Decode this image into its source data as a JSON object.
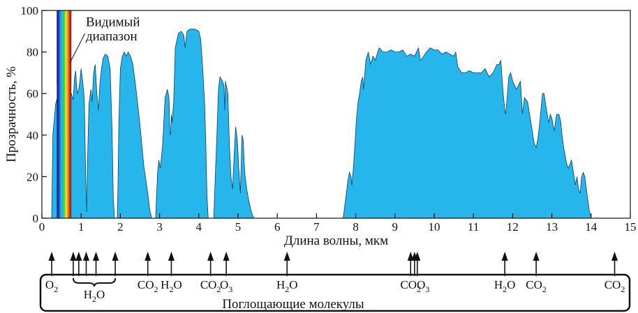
{
  "chart_data": {
    "type": "area",
    "title": "",
    "xlabel": "Длина волны, мкм",
    "ylabel": "Прозрачность, %",
    "xlim": [
      0,
      15
    ],
    "ylim": [
      0,
      100
    ],
    "x_ticks": [
      0,
      1,
      2,
      3,
      4,
      5,
      6,
      7,
      8,
      9,
      10,
      11,
      12,
      13,
      14,
      15
    ],
    "y_ticks": [
      0,
      20,
      40,
      60,
      80,
      100
    ],
    "grid": false,
    "fill_color": "#27b6ec",
    "series": [
      {
        "values_xy": [
          [
            0.25,
            0
          ],
          [
            0.28,
            40
          ],
          [
            0.35,
            55
          ],
          [
            0.45,
            62
          ],
          [
            0.55,
            64
          ],
          [
            0.65,
            63
          ],
          [
            0.75,
            60
          ],
          [
            0.8,
            57
          ],
          [
            0.83,
            67
          ],
          [
            0.86,
            71
          ],
          [
            0.9,
            60
          ],
          [
            0.94,
            62
          ],
          [
            0.97,
            66
          ],
          [
            1.0,
            72
          ],
          [
            1.04,
            66
          ],
          [
            1.08,
            58
          ],
          [
            1.1,
            38
          ],
          [
            1.12,
            18
          ],
          [
            1.14,
            3
          ],
          [
            1.16,
            25
          ],
          [
            1.2,
            55
          ],
          [
            1.25,
            62
          ],
          [
            1.28,
            56
          ],
          [
            1.32,
            70
          ],
          [
            1.36,
            74
          ],
          [
            1.4,
            60
          ],
          [
            1.44,
            52
          ],
          [
            1.48,
            65
          ],
          [
            1.52,
            72
          ],
          [
            1.56,
            77
          ],
          [
            1.62,
            79
          ],
          [
            1.68,
            78
          ],
          [
            1.74,
            72
          ],
          [
            1.79,
            42
          ],
          [
            1.82,
            10
          ],
          [
            1.85,
            0
          ],
          [
            1.92,
            0
          ],
          [
            1.94,
            15
          ],
          [
            1.96,
            45
          ],
          [
            2.0,
            72
          ],
          [
            2.05,
            78
          ],
          [
            2.1,
            80
          ],
          [
            2.15,
            78
          ],
          [
            2.2,
            80
          ],
          [
            2.26,
            78
          ],
          [
            2.32,
            74
          ],
          [
            2.4,
            62
          ],
          [
            2.5,
            45
          ],
          [
            2.6,
            25
          ],
          [
            2.7,
            12
          ],
          [
            2.75,
            4
          ],
          [
            2.8,
            0
          ],
          [
            2.9,
            0
          ],
          [
            2.92,
            10
          ],
          [
            2.95,
            22
          ],
          [
            2.98,
            28
          ],
          [
            3.02,
            24
          ],
          [
            3.08,
            36
          ],
          [
            3.14,
            58
          ],
          [
            3.2,
            62
          ],
          [
            3.24,
            58
          ],
          [
            3.26,
            42
          ],
          [
            3.28,
            40
          ],
          [
            3.3,
            50
          ],
          [
            3.32,
            46
          ],
          [
            3.36,
            56
          ],
          [
            3.4,
            82
          ],
          [
            3.48,
            89
          ],
          [
            3.55,
            90
          ],
          [
            3.62,
            88
          ],
          [
            3.65,
            82
          ],
          [
            3.7,
            90
          ],
          [
            3.78,
            91
          ],
          [
            3.9,
            91
          ],
          [
            4.0,
            90
          ],
          [
            4.05,
            86
          ],
          [
            4.1,
            72
          ],
          [
            4.15,
            55
          ],
          [
            4.18,
            35
          ],
          [
            4.21,
            10
          ],
          [
            4.24,
            0
          ],
          [
            4.38,
            0
          ],
          [
            4.42,
            20
          ],
          [
            4.46,
            40
          ],
          [
            4.5,
            62
          ],
          [
            4.54,
            68
          ],
          [
            4.6,
            66
          ],
          [
            4.64,
            64
          ],
          [
            4.66,
            52
          ],
          [
            4.68,
            66
          ],
          [
            4.74,
            60
          ],
          [
            4.78,
            36
          ],
          [
            4.82,
            20
          ],
          [
            4.86,
            14
          ],
          [
            4.9,
            30
          ],
          [
            4.94,
            44
          ],
          [
            4.98,
            38
          ],
          [
            5.02,
            24
          ],
          [
            5.06,
            12
          ],
          [
            5.1,
            40
          ],
          [
            5.13,
            38
          ],
          [
            5.17,
            22
          ],
          [
            5.22,
            14
          ],
          [
            5.28,
            8
          ],
          [
            5.34,
            3
          ],
          [
            5.4,
            0
          ],
          [
            7.68,
            0
          ],
          [
            7.72,
            6
          ],
          [
            7.8,
            18
          ],
          [
            7.84,
            22
          ],
          [
            7.88,
            20
          ],
          [
            7.9,
            16
          ],
          [
            7.94,
            24
          ],
          [
            7.98,
            36
          ],
          [
            8.02,
            48
          ],
          [
            8.06,
            56
          ],
          [
            8.1,
            60
          ],
          [
            8.14,
            66
          ],
          [
            8.18,
            68
          ],
          [
            8.2,
            62
          ],
          [
            8.26,
            76
          ],
          [
            8.32,
            80
          ],
          [
            8.38,
            74
          ],
          [
            8.44,
            78
          ],
          [
            8.5,
            76
          ],
          [
            8.56,
            80
          ],
          [
            8.6,
            82
          ],
          [
            8.7,
            80
          ],
          [
            8.8,
            80
          ],
          [
            8.9,
            81
          ],
          [
            9.0,
            80
          ],
          [
            9.1,
            80
          ],
          [
            9.2,
            81
          ],
          [
            9.3,
            78
          ],
          [
            9.4,
            79
          ],
          [
            9.5,
            78
          ],
          [
            9.55,
            80
          ],
          [
            9.6,
            82
          ],
          [
            9.65,
            76
          ],
          [
            9.7,
            77
          ],
          [
            9.8,
            80
          ],
          [
            9.9,
            82
          ],
          [
            10.0,
            81
          ],
          [
            10.1,
            81
          ],
          [
            10.2,
            79
          ],
          [
            10.3,
            80
          ],
          [
            10.4,
            79
          ],
          [
            10.5,
            78
          ],
          [
            10.55,
            80
          ],
          [
            10.6,
            73
          ],
          [
            10.7,
            70
          ],
          [
            10.8,
            70
          ],
          [
            10.9,
            71
          ],
          [
            11.0,
            70
          ],
          [
            11.1,
            70
          ],
          [
            11.2,
            70
          ],
          [
            11.3,
            72
          ],
          [
            11.4,
            68
          ],
          [
            11.5,
            70
          ],
          [
            11.6,
            74
          ],
          [
            11.65,
            74
          ],
          [
            11.7,
            76
          ],
          [
            11.72,
            70
          ],
          [
            11.76,
            60
          ],
          [
            11.8,
            52
          ],
          [
            11.82,
            50
          ],
          [
            11.86,
            58
          ],
          [
            11.9,
            68
          ],
          [
            11.95,
            70
          ],
          [
            12.0,
            66
          ],
          [
            12.1,
            62
          ],
          [
            12.2,
            66
          ],
          [
            12.25,
            50
          ],
          [
            12.3,
            58
          ],
          [
            12.38,
            56
          ],
          [
            12.45,
            48
          ],
          [
            12.5,
            42
          ],
          [
            12.55,
            36
          ],
          [
            12.6,
            34
          ],
          [
            12.64,
            38
          ],
          [
            12.68,
            44
          ],
          [
            12.72,
            52
          ],
          [
            12.76,
            60
          ],
          [
            12.8,
            60
          ],
          [
            12.84,
            55
          ],
          [
            12.88,
            50
          ],
          [
            12.92,
            46
          ],
          [
            12.96,
            50
          ],
          [
            13.0,
            48
          ],
          [
            13.06,
            42
          ],
          [
            13.12,
            50
          ],
          [
            13.18,
            50
          ],
          [
            13.22,
            47
          ],
          [
            13.26,
            40
          ],
          [
            13.3,
            34
          ],
          [
            13.34,
            30
          ],
          [
            13.38,
            26
          ],
          [
            13.42,
            24
          ],
          [
            13.46,
            26
          ],
          [
            13.5,
            28
          ],
          [
            13.55,
            22
          ],
          [
            13.6,
            16
          ],
          [
            13.64,
            20
          ],
          [
            13.68,
            14
          ],
          [
            13.72,
            12
          ],
          [
            13.76,
            20
          ],
          [
            13.8,
            22
          ],
          [
            13.84,
            20
          ],
          [
            13.88,
            14
          ],
          [
            13.92,
            8
          ],
          [
            13.96,
            3
          ],
          [
            14.0,
            0
          ]
        ]
      }
    ],
    "visible_band": {
      "label_line1": "Видимый",
      "label_line2": "диапазон",
      "x_range": [
        0.38,
        0.75
      ],
      "colors": [
        "#1a1a5e",
        "#2a2ec8",
        "#1f9be8",
        "#19c9c8",
        "#2fca4a",
        "#e9e92a",
        "#f59a1e",
        "#e2321e",
        "#7a1010"
      ]
    },
    "absorbing_molecules": {
      "title": "Поглощающие молекулы",
      "arrows_x": [
        0.25,
        0.8,
        0.94,
        1.13,
        1.38,
        1.87,
        2.7,
        3.3,
        4.3,
        4.7,
        6.25,
        9.4,
        9.5,
        9.57,
        11.8,
        12.6,
        14.6
      ],
      "labels": [
        {
          "x": 0.25,
          "base": "O",
          "sub": "2"
        },
        {
          "x": 2.7,
          "base": "CO",
          "sub": "2"
        },
        {
          "x": 3.3,
          "base": "H",
          "sub": "2",
          "after": "O"
        },
        {
          "x": 4.3,
          "base": "CO",
          "sub": "2"
        },
        {
          "x": 4.7,
          "base": "O",
          "sub": "3"
        },
        {
          "x": 6.25,
          "base": "H",
          "sub": "2",
          "after": "O"
        },
        {
          "x": 9.4,
          "base": "CO",
          "sub": "2"
        },
        {
          "x": 9.72,
          "base": "O",
          "sub": "3"
        },
        {
          "x": 11.8,
          "base": "H",
          "sub": "2",
          "after": "O"
        },
        {
          "x": 12.6,
          "base": "CO",
          "sub": "2"
        },
        {
          "x": 14.6,
          "base": "CO",
          "sub": "2"
        }
      ],
      "brace_range": [
        0.8,
        1.87
      ],
      "brace_label": {
        "base": "H",
        "sub": "2",
        "after": "O"
      }
    }
  }
}
